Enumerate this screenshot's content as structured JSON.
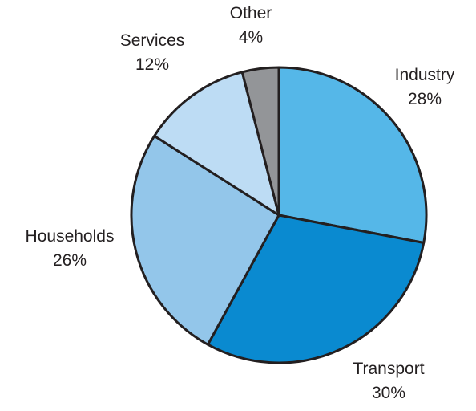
{
  "chart_data": {
    "type": "pie",
    "title": "",
    "slices": [
      {
        "label": "Industry",
        "value": 28,
        "value_label": "28%",
        "color": "#55b7e8"
      },
      {
        "label": "Transport",
        "value": 30,
        "value_label": "30%",
        "color": "#0a8ad0"
      },
      {
        "label": "Households",
        "value": 26,
        "value_label": "26%",
        "color": "#93c6ea"
      },
      {
        "label": "Services",
        "value": 12,
        "value_label": "12%",
        "color": "#bddcf4"
      },
      {
        "label": "Other",
        "value": 4,
        "value_label": "4%",
        "color": "#939598"
      }
    ],
    "start_angle": "12 o'clock",
    "direction": "clockwise",
    "legend": "none"
  }
}
